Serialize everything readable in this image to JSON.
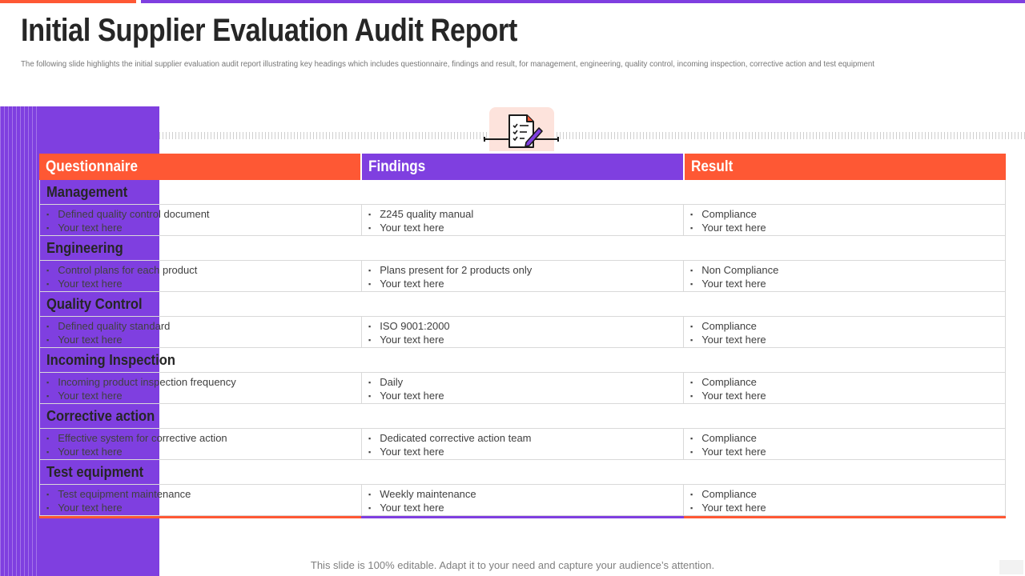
{
  "title": "Initial Supplier Evaluation Audit Report",
  "subtitle": "The following slide highlights the initial  supplier evaluation audit  report illustrating key headings  which includes questionnaire, findings and result, for management,  engineering, quality control, incoming inspection, corrective action and test equipment",
  "colors": {
    "accent_orange": "#fe5834",
    "accent_purple": "#7f3fe0",
    "icon_bg": "#fde3dc"
  },
  "icon": "checklist-document-with-pencil-icon",
  "table": {
    "headers": [
      "Questionnaire",
      "Findings",
      "Result"
    ],
    "sections": [
      {
        "title": "Management",
        "questionnaire": [
          "Defined quality control document",
          "Your text here"
        ],
        "findings": [
          "Z245 quality manual",
          "Your text here"
        ],
        "result": [
          "Compliance",
          "Your text here"
        ]
      },
      {
        "title": "Engineering",
        "questionnaire": [
          "Control plans for each product",
          "Your text here"
        ],
        "findings": [
          "Plans present for 2 products only",
          "Your text here"
        ],
        "result": [
          "Non Compliance",
          "Your text here"
        ]
      },
      {
        "title": "Quality Control",
        "questionnaire": [
          "Defined  quality standard",
          "Your text here"
        ],
        "findings": [
          "ISO 9001:2000",
          "Your text here"
        ],
        "result": [
          "Compliance",
          "Your text here"
        ]
      },
      {
        "title": "Incoming Inspection",
        "questionnaire": [
          "Incoming product inspection frequency",
          "Your text here"
        ],
        "findings": [
          "Daily",
          "Your text here"
        ],
        "result": [
          "Compliance",
          "Your text here"
        ]
      },
      {
        "title": "Corrective action",
        "questionnaire": [
          "Effective system for corrective  action",
          "Your text here"
        ],
        "findings": [
          "Dedicated corrective  action team",
          "Your text here"
        ],
        "result": [
          "Compliance",
          "Your text here"
        ]
      },
      {
        "title": "Test equipment",
        "questionnaire": [
          "Test equipment  maintenance",
          "Your text here"
        ],
        "findings": [
          "Weekly maintenance",
          "Your text here"
        ],
        "result": [
          "Compliance",
          "Your text here"
        ]
      }
    ]
  },
  "footer": "This slide is 100% editable. Adapt it to your need and capture your audience’s attention."
}
